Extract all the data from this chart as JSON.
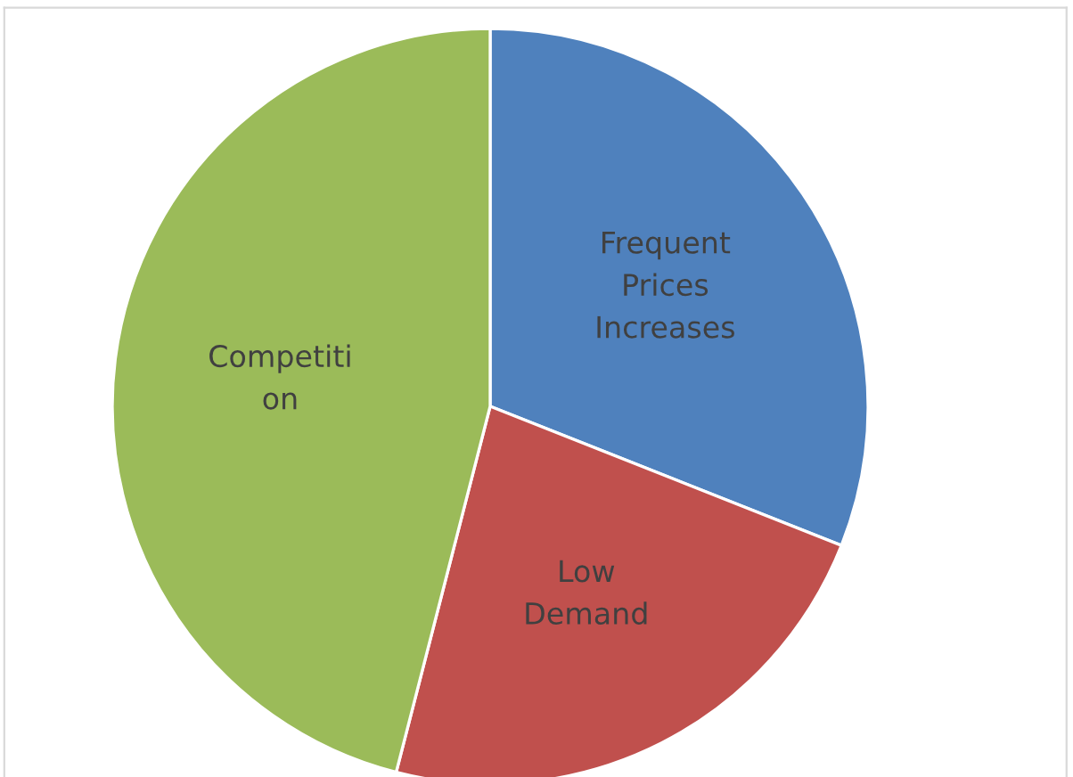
{
  "chart_data": {
    "type": "pie",
    "categories": [
      "Frequent\nPrices\nIncreases",
      "Low\nDemand",
      "Competiti\non"
    ],
    "values": [
      31,
      23,
      46
    ],
    "colors": [
      "#4f81bd",
      "#c0504d",
      "#9bbb59"
    ]
  }
}
